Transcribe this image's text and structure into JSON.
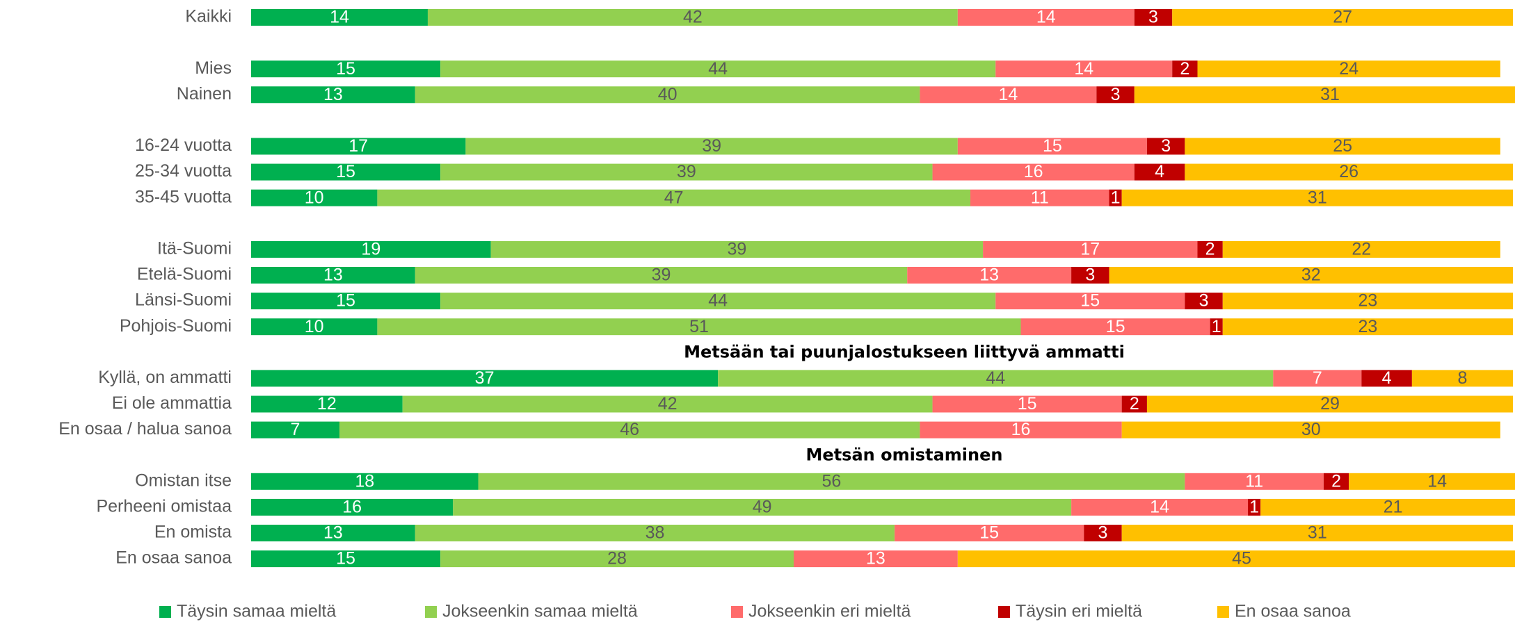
{
  "chart_data": {
    "type": "stacked-bar-horizontal",
    "categories": [
      "Kaikki",
      null,
      "Mies",
      "Nainen",
      null,
      "16-24 vuotta",
      "25-34 vuotta",
      "35-45 vuotta",
      null,
      "Itä-Suomi",
      "Etelä-Suomi",
      "Länsi-Suomi",
      "Pohjois-Suomi",
      null,
      "Kyllä, on ammatti",
      "Ei ole ammattia",
      "En osaa / halua sanoa",
      null,
      "Omistan itse",
      "Perheeni omistaa",
      "En omista",
      "En osaa sanoa"
    ],
    "headings": [
      "Metsään tai puunjalostukseen liittyvä ammatti",
      "Metsän omistaminen"
    ],
    "xlim": [
      0,
      100
    ],
    "legend": "bottom",
    "series": [
      {
        "name": "Täysin samaa mieltä",
        "color": "#00b050",
        "label_color": "#ffffff",
        "values": [
          14,
          null,
          15,
          13,
          null,
          17,
          15,
          10,
          null,
          19,
          13,
          15,
          10,
          null,
          37,
          12,
          7,
          null,
          18,
          16,
          13,
          15
        ]
      },
      {
        "name": "Jokseenkin samaa mieltä",
        "color": "#92d050",
        "label_color": "#595959",
        "values": [
          42,
          null,
          44,
          40,
          null,
          39,
          39,
          47,
          null,
          39,
          39,
          44,
          51,
          null,
          44,
          42,
          46,
          null,
          56,
          49,
          38,
          28
        ]
      },
      {
        "name": "Jokseenkin eri mieltä",
        "color": "#ff6b6b",
        "label_color": "#ffffff",
        "values": [
          14,
          null,
          14,
          14,
          null,
          15,
          16,
          11,
          null,
          17,
          13,
          15,
          15,
          null,
          7,
          15,
          16,
          null,
          11,
          14,
          15,
          13
        ]
      },
      {
        "name": "Täysin eri mieltä",
        "color": "#c00000",
        "label_color": "#ffffff",
        "values": [
          3,
          null,
          2,
          3,
          null,
          3,
          4,
          1,
          null,
          2,
          3,
          3,
          1,
          null,
          4,
          2,
          null,
          null,
          2,
          1,
          3,
          null
        ]
      },
      {
        "name": "En osaa sanoa",
        "color": "#ffc000",
        "label_color": "#595959",
        "values": [
          27,
          null,
          24,
          31,
          null,
          25,
          26,
          31,
          null,
          22,
          32,
          23,
          23,
          null,
          8,
          29,
          30,
          null,
          14,
          21,
          31,
          45
        ]
      }
    ]
  }
}
